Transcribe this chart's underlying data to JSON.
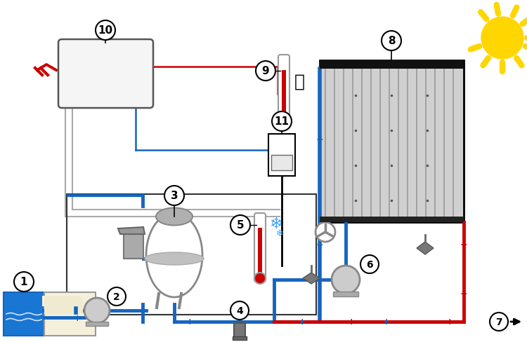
{
  "bg_color": "#ffffff",
  "blue": "#1565C0",
  "red": "#CC0000",
  "gray": "#888888",
  "dark_gray": "#444444",
  "light_gray": "#C8C8C8",
  "mid_gray": "#AAAAAA",
  "pool_blue": "#1976D2",
  "sun_yellow": "#FFD600",
  "wire_gray": "#999999",
  "box_bg": "#F5F5F5",
  "collector_bg": "#D0D0D0",
  "pipe_lw": 3.5,
  "wire_lw": 1.5,
  "thin_lw": 1.2
}
